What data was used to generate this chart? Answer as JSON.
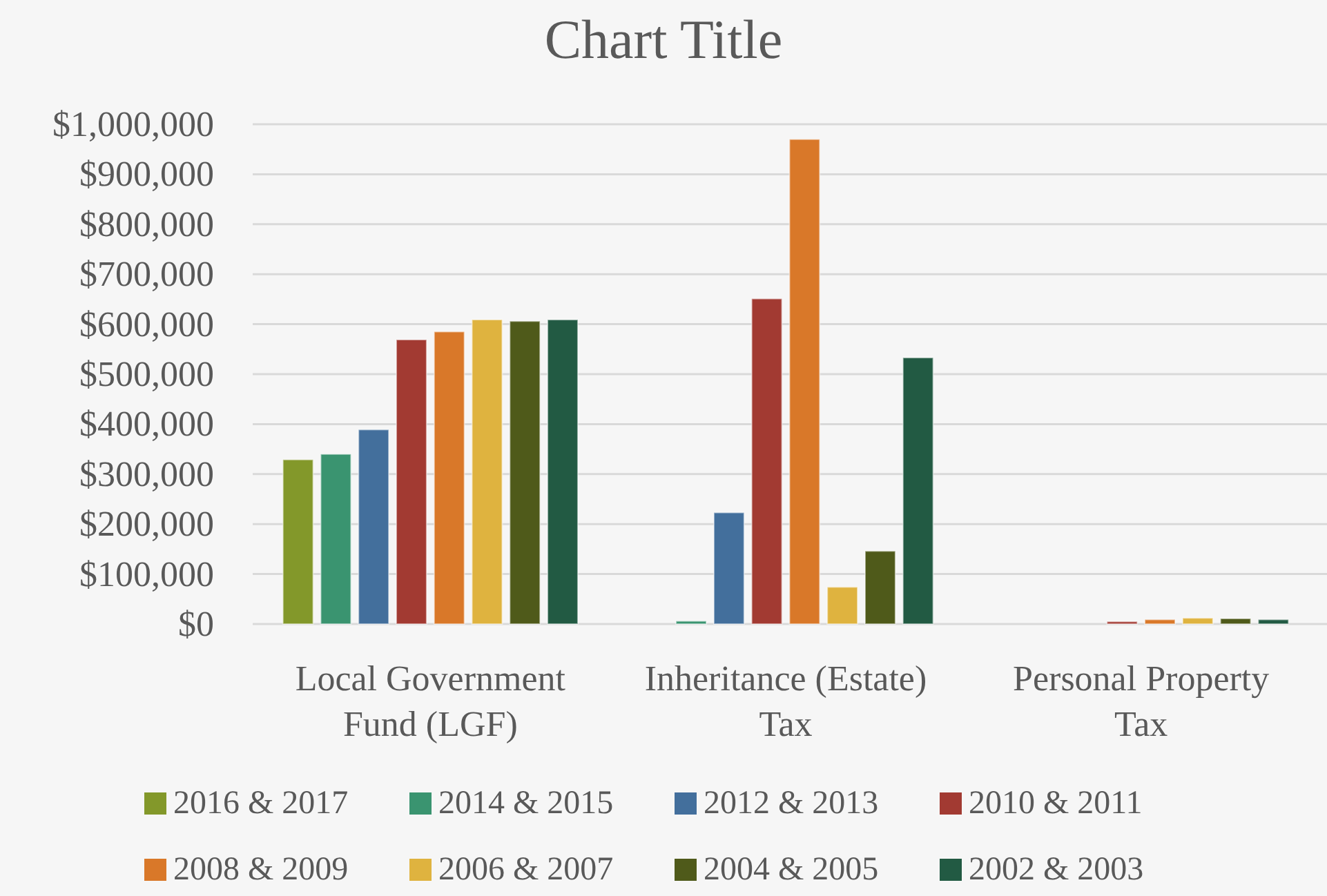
{
  "chart_data": {
    "type": "bar",
    "title": "Chart Title",
    "categories": [
      "Local Government Fund (LGF)",
      "Inheritance (Estate) Tax",
      "Personal Property Tax"
    ],
    "series": [
      {
        "name": "2016 & 2017",
        "color": "#83982a",
        "values": [
          329000,
          0,
          0
        ]
      },
      {
        "name": "2014 & 2015",
        "color": "#3a9470",
        "values": [
          340000,
          6000,
          0
        ]
      },
      {
        "name": "2012 & 2013",
        "color": "#436f9c",
        "values": [
          389000,
          223000,
          0
        ]
      },
      {
        "name": "2010 & 2011",
        "color": "#a23a32",
        "values": [
          569000,
          651000,
          5000
        ]
      },
      {
        "name": "2008 & 2009",
        "color": "#d97829",
        "values": [
          585000,
          970000,
          9000
        ]
      },
      {
        "name": "2006 & 2007",
        "color": "#dfb33f",
        "values": [
          609000,
          74000,
          12000
        ]
      },
      {
        "name": "2004 & 2005",
        "color": "#4f5a1a",
        "values": [
          606000,
          146000,
          11000
        ]
      },
      {
        "name": "2002 & 2003",
        "color": "#225a43",
        "values": [
          609000,
          533000,
          9000
        ]
      }
    ],
    "ylim": [
      0,
      1000000
    ],
    "yticks": [
      {
        "value": 0,
        "label": "$0"
      },
      {
        "value": 100000,
        "label": "$100,000"
      },
      {
        "value": 200000,
        "label": "$200,000"
      },
      {
        "value": 300000,
        "label": "$300,000"
      },
      {
        "value": 400000,
        "label": "$400,000"
      },
      {
        "value": 500000,
        "label": "$500,000"
      },
      {
        "value": 600000,
        "label": "$600,000"
      },
      {
        "value": 700000,
        "label": "$700,000"
      },
      {
        "value": 800000,
        "label": "$800,000"
      },
      {
        "value": 900000,
        "label": "$900,000"
      },
      {
        "value": 1000000,
        "label": "$1,000,000"
      }
    ],
    "grid": "y",
    "legend": "bottom"
  }
}
